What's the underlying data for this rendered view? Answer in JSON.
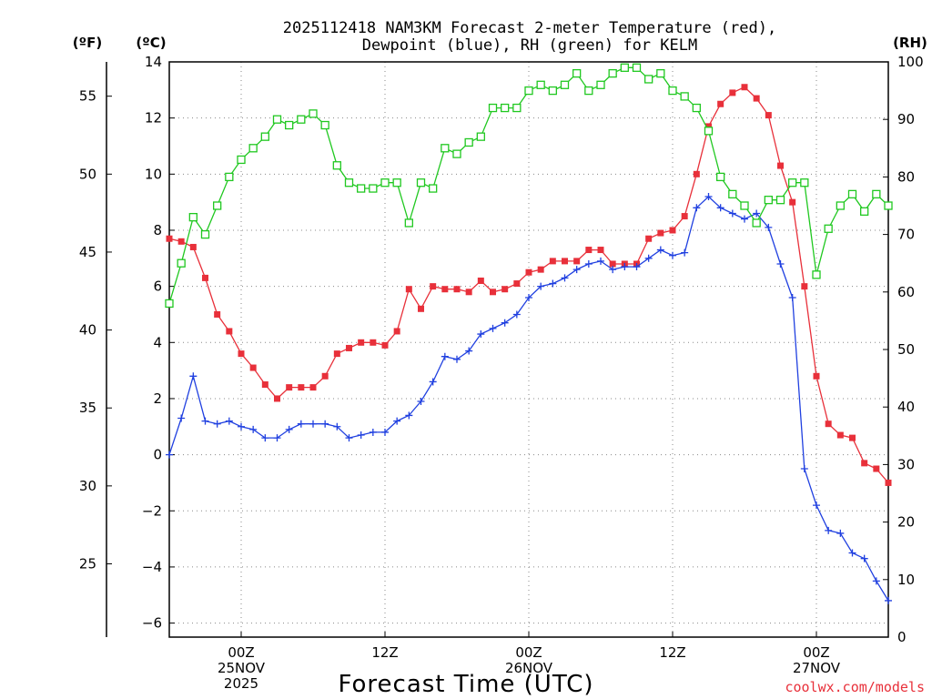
{
  "chart_data": {
    "type": "line",
    "title_line1": "2025112418 NAM3KM Forecast 2-meter Temperature (red),",
    "title_line2": "Dewpoint (blue), RH (green) for KELM",
    "xlabel": "Forecast Time (UTC)",
    "unit_f": "(ºF)",
    "unit_c": "(ºC)",
    "unit_rh": "(RH)",
    "credit": "coolwx.com/models",
    "colors": {
      "temperature": "#e8303a",
      "dewpoint": "#2040e0",
      "rh": "#20c820",
      "grid": "#888888"
    },
    "x_hours_range": [
      -6,
      54
    ],
    "x_ticks": [
      {
        "hour": 0,
        "labels": [
          "00Z",
          "25NOV",
          "2025"
        ]
      },
      {
        "hour": 12,
        "labels": [
          "12Z"
        ]
      },
      {
        "hour": 24,
        "labels": [
          "00Z",
          "26NOV"
        ]
      },
      {
        "hour": 36,
        "labels": [
          "12Z"
        ]
      },
      {
        "hour": 48,
        "labels": [
          "00Z",
          "27NOV"
        ]
      }
    ],
    "celsius_axis": {
      "range": [
        -6.5,
        14
      ],
      "ticks": [
        "-6",
        "-4",
        "-2",
        "0",
        "2",
        "4",
        "6",
        "8",
        "10",
        "12",
        "14"
      ]
    },
    "fahrenheit_axis": {
      "ticks": [
        "25",
        "30",
        "35",
        "40",
        "45",
        "50",
        "55"
      ]
    },
    "rh_axis": {
      "range": [
        0,
        100
      ],
      "ticks": [
        "0",
        "10",
        "20",
        "30",
        "40",
        "50",
        "60",
        "70",
        "80",
        "90",
        "100"
      ]
    },
    "series": [
      {
        "name": "Temperature (°C)",
        "key": "temperature",
        "axis": "celsius",
        "marker": "filled-square",
        "x_hours": [
          -6,
          -5,
          -4,
          -3,
          -2,
          -1,
          0,
          1,
          2,
          3,
          4,
          5,
          6,
          7,
          8,
          9,
          10,
          11,
          12,
          13,
          14,
          15,
          16,
          17,
          18,
          19,
          20,
          21,
          22,
          23,
          24,
          25,
          26,
          27,
          28,
          29,
          30,
          31,
          32,
          33,
          34,
          35,
          36,
          37,
          38,
          39,
          40,
          41,
          42,
          43,
          44,
          45,
          46,
          47,
          48,
          49,
          50,
          51,
          52,
          53,
          54
        ],
        "values": [
          7.7,
          7.6,
          7.4,
          6.3,
          5.0,
          4.4,
          3.6,
          3.1,
          2.5,
          2.0,
          2.4,
          2.4,
          2.4,
          2.8,
          3.6,
          3.8,
          4.0,
          4.0,
          3.9,
          4.4,
          5.9,
          5.2,
          6.0,
          5.9,
          5.9,
          5.8,
          6.2,
          5.8,
          5.9,
          6.1,
          6.5,
          6.6,
          6.9,
          6.9,
          6.9,
          7.3,
          7.3,
          6.8,
          6.8,
          6.8,
          7.7,
          7.9,
          8.0,
          8.5,
          10.0,
          11.7,
          12.5,
          12.9,
          13.1,
          12.7,
          12.1,
          10.3,
          9.0,
          6.0,
          2.8,
          1.1,
          0.7,
          0.6,
          -0.3,
          -0.5,
          -1.0
        ]
      },
      {
        "name": "Dewpoint (°C)",
        "key": "dewpoint",
        "axis": "celsius",
        "marker": "plus",
        "x_hours": [
          -6,
          -5,
          -4,
          -3,
          -2,
          -1,
          0,
          1,
          2,
          3,
          4,
          5,
          6,
          7,
          8,
          9,
          10,
          11,
          12,
          13,
          14,
          15,
          16,
          17,
          18,
          19,
          20,
          21,
          22,
          23,
          24,
          25,
          26,
          27,
          28,
          29,
          30,
          31,
          32,
          33,
          34,
          35,
          36,
          37,
          38,
          39,
          40,
          41,
          42,
          43,
          44,
          45,
          46,
          47,
          48,
          49,
          50,
          51,
          52,
          53,
          54
        ],
        "values": [
          0.0,
          1.3,
          2.8,
          1.2,
          1.1,
          1.2,
          1.0,
          0.9,
          0.6,
          0.6,
          0.9,
          1.1,
          1.1,
          1.1,
          1.0,
          0.6,
          0.7,
          0.8,
          0.8,
          1.2,
          1.4,
          1.9,
          2.6,
          3.5,
          3.4,
          3.7,
          4.3,
          4.5,
          4.7,
          5.0,
          5.6,
          6.0,
          6.1,
          6.3,
          6.6,
          6.8,
          6.9,
          6.6,
          6.7,
          6.7,
          7.0,
          7.3,
          7.1,
          7.2,
          8.8,
          9.2,
          8.8,
          8.6,
          8.4,
          8.6,
          8.1,
          6.8,
          5.6,
          -0.5,
          -1.8,
          -2.7,
          -2.8,
          -3.5,
          -3.7,
          -4.5,
          -5.2
        ]
      },
      {
        "name": "Relative Humidity (%)",
        "key": "rh",
        "axis": "rh",
        "marker": "open-square",
        "x_hours": [
          -6,
          -5,
          -4,
          -3,
          -2,
          -1,
          0,
          1,
          2,
          3,
          4,
          5,
          6,
          7,
          8,
          9,
          10,
          11,
          12,
          13,
          14,
          15,
          16,
          17,
          18,
          19,
          20,
          21,
          22,
          23,
          24,
          25,
          26,
          27,
          28,
          29,
          30,
          31,
          32,
          33,
          34,
          35,
          36,
          37,
          38,
          39,
          40,
          41,
          42,
          43,
          44,
          45,
          46,
          47,
          48,
          49,
          50,
          51,
          52,
          53,
          54
        ],
        "values": [
          58,
          65,
          73,
          70,
          75,
          80,
          83,
          85,
          87,
          90,
          89,
          90,
          91,
          89,
          82,
          79,
          78,
          78,
          79,
          79,
          72,
          79,
          78,
          85,
          84,
          86,
          87,
          92,
          92,
          92,
          95,
          96,
          95,
          96,
          98,
          95,
          96,
          98,
          99,
          99,
          97,
          98,
          95,
          94,
          92,
          88,
          80,
          77,
          75,
          72,
          76,
          76,
          79,
          79,
          63,
          71,
          75,
          77,
          74,
          77,
          75
        ]
      }
    ]
  }
}
